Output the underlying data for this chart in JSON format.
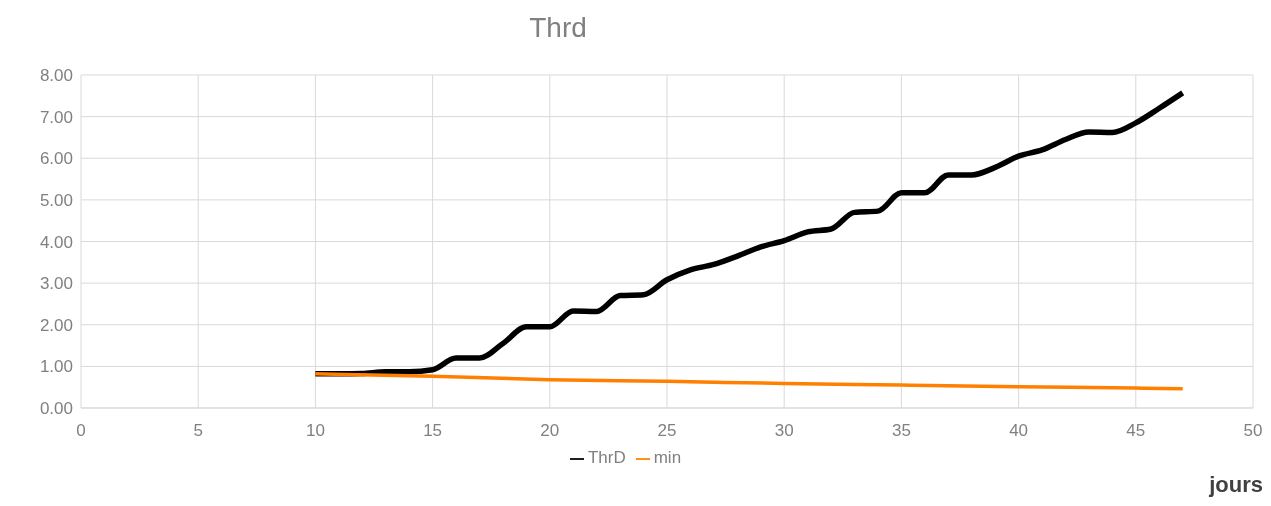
{
  "chart_data": {
    "type": "line",
    "title": "Thrd",
    "xlabel": "jours",
    "x": [
      10,
      11,
      12,
      13,
      14,
      15,
      16,
      17,
      18,
      19,
      20,
      21,
      22,
      23,
      24,
      25,
      26,
      27,
      28,
      29,
      30,
      31,
      32,
      33,
      34,
      35,
      36,
      37,
      38,
      39,
      40,
      41,
      42,
      43,
      44,
      45,
      46,
      47
    ],
    "series": [
      {
        "name": "ThrD",
        "color": "#000000",
        "values": [
          0.82,
          0.82,
          0.83,
          0.87,
          0.87,
          0.92,
          1.2,
          1.2,
          1.55,
          1.95,
          1.95,
          2.33,
          2.32,
          2.7,
          2.72,
          3.08,
          3.32,
          3.45,
          3.65,
          3.87,
          4.02,
          4.23,
          4.3,
          4.7,
          4.73,
          5.17,
          5.17,
          5.6,
          5.6,
          5.78,
          6.05,
          6.2,
          6.45,
          6.63,
          6.62,
          6.85,
          7.2,
          7.57
        ]
      },
      {
        "name": "min",
        "color": "#ff8000",
        "x": [
          10,
          15,
          20,
          25,
          30,
          35,
          40,
          45,
          47
        ],
        "values": [
          0.82,
          0.76,
          0.68,
          0.64,
          0.59,
          0.55,
          0.51,
          0.48,
          0.46
        ]
      }
    ],
    "xlim": [
      0,
      50
    ],
    "xticks": [
      0,
      5,
      10,
      15,
      20,
      25,
      30,
      35,
      40,
      45,
      50
    ],
    "ylim": [
      0,
      8
    ],
    "yticks": [
      {
        "value": 0,
        "label": "0.00"
      },
      {
        "value": 1,
        "label": "1.00"
      },
      {
        "value": 2,
        "label": "2.00"
      },
      {
        "value": 3,
        "label": "3.00"
      },
      {
        "value": 4,
        "label": "4.00"
      },
      {
        "value": 5,
        "label": "5.00"
      },
      {
        "value": 6,
        "label": "6.00"
      },
      {
        "value": 7,
        "label": "7.00"
      },
      {
        "value": 8,
        "label": "8.00"
      }
    ],
    "grid": true,
    "legend": "bottom",
    "marker": "none",
    "line_style": "solid"
  }
}
